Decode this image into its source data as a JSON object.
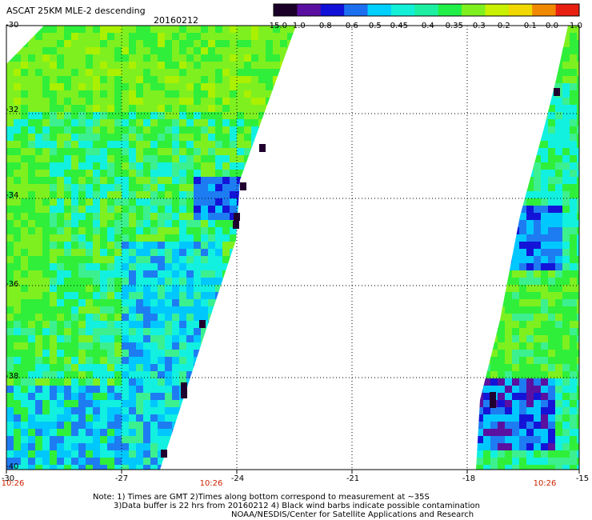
{
  "title": "ASCAT 25KM MLE-2 descending",
  "date": "20160212",
  "colorbar": {
    "labels": [
      "-15.0",
      "-1.0",
      "-0.8",
      "-0.6",
      "-0.5",
      "-0.45",
      "-0.4",
      "-0.35",
      "-0.3",
      "-0.2",
      "-0.1",
      "0.0",
      "1.0"
    ],
    "colors": [
      "#1a0028",
      "#5a0fa0",
      "#1010d8",
      "#1c70f0",
      "#00d0ff",
      "#12f0d8",
      "#1cf0a0",
      "#22ef48",
      "#7ef020",
      "#c8f000",
      "#f0d800",
      "#f08800",
      "#e82010"
    ]
  },
  "y_axis": {
    "labels": [
      "-30",
      "-32",
      "-34",
      "-36",
      "-38",
      "-40"
    ]
  },
  "x_axis": {
    "labels": [
      "-30",
      "-27",
      "-24",
      "-21",
      "-18",
      "-15"
    ]
  },
  "time_labels": [
    "10:26",
    "10:26",
    "10:26"
  ],
  "notes": [
    "Note: 1) Times are GMT 2)Times along bottom correspond to measurement at ~35S",
    "3)Data buffer is 22 hrs from 20160212 4) Black wind barbs indicate possible contamination",
    "NOAA/NESDIS/Center for Satellite Applications and Research"
  ]
}
